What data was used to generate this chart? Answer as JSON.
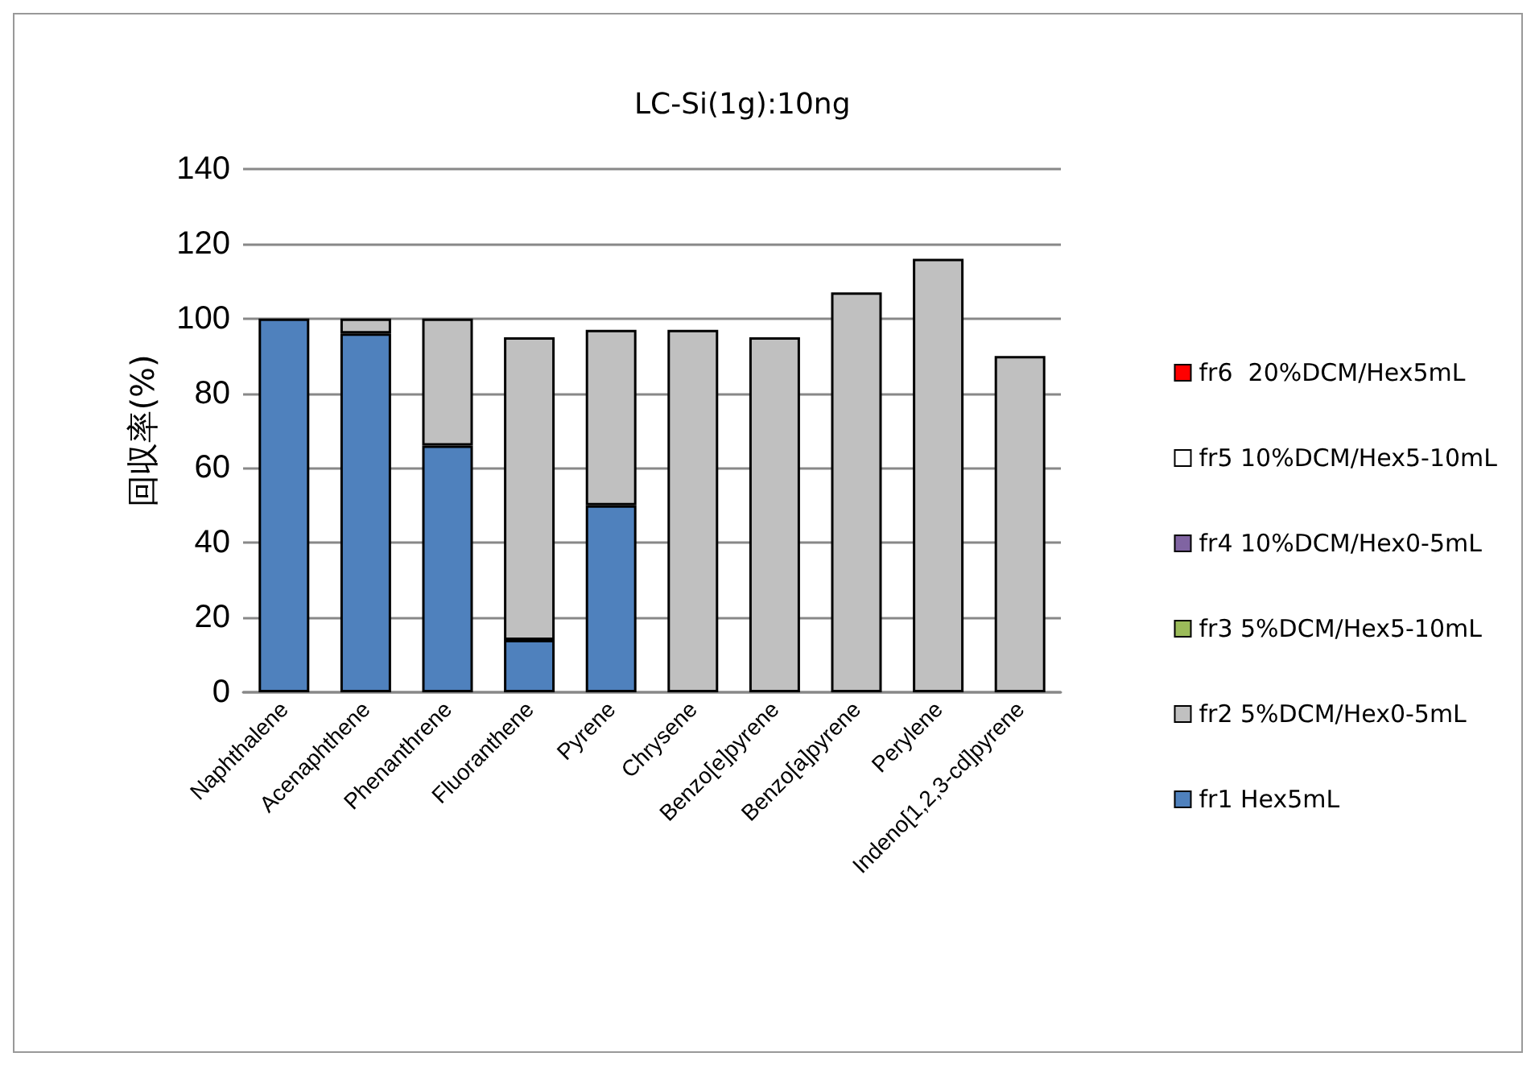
{
  "chart_data": {
    "type": "bar",
    "title": "LC-Si(1g):10ng",
    "ylabel": "回収率(%)",
    "stacked": true,
    "categories": [
      "Naphthalene",
      "Acenaphthene",
      "Phenanthrene",
      "Fluoranthene",
      "Pyrene",
      "Chrysene",
      "Benzo[e]pyrene",
      "Benzo[a]pyrene",
      "Perylene",
      "Indeno[1,2,3-cd]pyrene"
    ],
    "series": [
      {
        "name": "fr1 Hex5mL",
        "color": "#4f81bd",
        "values": [
          100,
          96,
          66,
          14,
          50,
          null,
          null,
          null,
          null,
          null
        ]
      },
      {
        "name": "fr2 5%DCM/Hex0-5mL",
        "color": "#c0c0c0",
        "values": [
          null,
          4,
          34,
          81,
          47,
          97,
          95,
          107,
          116,
          90
        ]
      },
      {
        "name": "fr3 5%DCM/Hex5-10mL",
        "color": "#9bbb59",
        "values": [
          null,
          null,
          null,
          null,
          null,
          null,
          null,
          null,
          null,
          null
        ]
      },
      {
        "name": "fr4 10%DCM/Hex0-5mL",
        "color": "#8064a2",
        "values": [
          null,
          null,
          null,
          null,
          null,
          null,
          null,
          null,
          null,
          null
        ]
      },
      {
        "name": "fr5 10%DCM/Hex5-10mL",
        "color": "#ffffff",
        "values": [
          null,
          null,
          null,
          null,
          null,
          null,
          null,
          null,
          null,
          null
        ]
      },
      {
        "name": "fr6  20%DCM/Hex5mL",
        "color": "#ff0000",
        "values": [
          null,
          null,
          null,
          null,
          null,
          null,
          null,
          null,
          null,
          null
        ]
      }
    ],
    "ylim": [
      0,
      140
    ],
    "yticks": [
      0,
      20,
      40,
      60,
      80,
      100,
      120,
      140
    ],
    "grid": "y",
    "legend": "right"
  }
}
